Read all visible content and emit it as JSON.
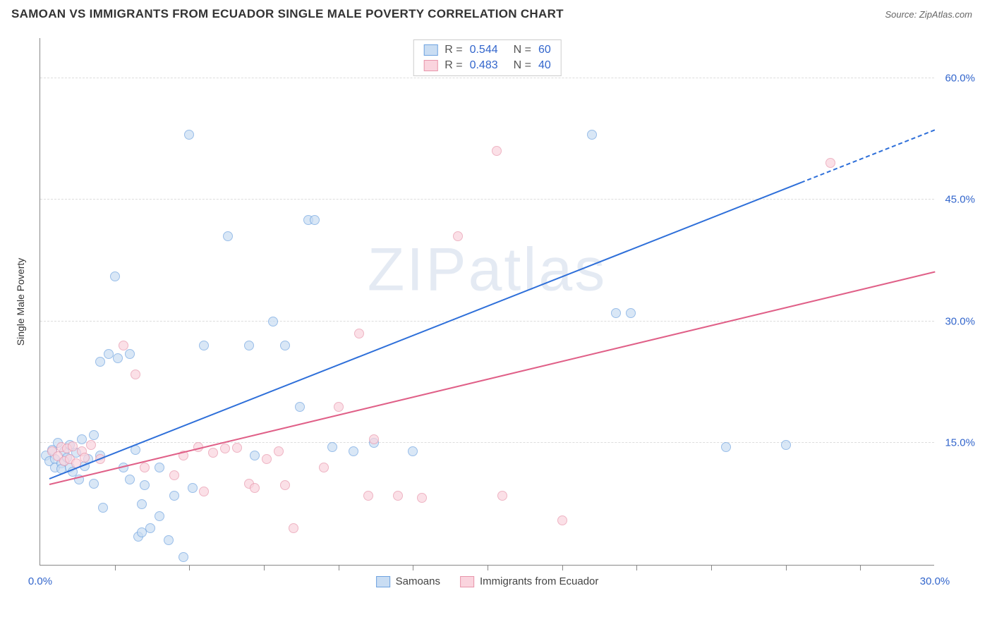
{
  "title": "SAMOAN VS IMMIGRANTS FROM ECUADOR SINGLE MALE POVERTY CORRELATION CHART",
  "source_label": "Source: ZipAtlas.com",
  "watermark": "ZIPatlas",
  "ylabel": "Single Male Poverty",
  "chart": {
    "type": "scatter",
    "xlim": [
      0,
      30
    ],
    "ylim": [
      0,
      65
    ],
    "xtick_labels": [
      "0.0%",
      "30.0%"
    ],
    "xtick_positions": [
      0,
      30
    ],
    "minor_xticks": [
      2.5,
      5,
      7.5,
      10,
      12.5,
      15,
      17.5,
      20,
      22.5,
      25,
      27.5
    ],
    "ytick_labels": [
      "15.0%",
      "30.0%",
      "45.0%",
      "60.0%"
    ],
    "ytick_positions": [
      15,
      30,
      45,
      60
    ],
    "grid_color": "#dddddd",
    "axis_color": "#888888",
    "background": "#ffffff",
    "marker_radius": 7,
    "series": [
      {
        "name": "Samoans",
        "fill": "#c9ddf3",
        "stroke": "#6fa3e0",
        "trend_color": "#2e6fd9",
        "r": "0.544",
        "n": "60",
        "trend": {
          "x1": 0.3,
          "y1": 10.5,
          "x2": 25.5,
          "y2": 47,
          "dash_to_x": 30,
          "dash_to_y": 53.5
        },
        "points": [
          [
            0.2,
            13.5
          ],
          [
            0.3,
            12.8
          ],
          [
            0.4,
            14.2
          ],
          [
            0.5,
            13.0
          ],
          [
            0.5,
            12.0
          ],
          [
            0.6,
            15.0
          ],
          [
            0.7,
            12.5
          ],
          [
            0.7,
            11.8
          ],
          [
            0.8,
            14.0
          ],
          [
            0.9,
            13.2
          ],
          [
            1.0,
            12.0
          ],
          [
            1.0,
            14.8
          ],
          [
            1.1,
            11.5
          ],
          [
            1.2,
            13.8
          ],
          [
            1.3,
            10.5
          ],
          [
            1.4,
            15.5
          ],
          [
            1.5,
            12.2
          ],
          [
            1.6,
            13.0
          ],
          [
            1.8,
            16.0
          ],
          [
            1.8,
            10.0
          ],
          [
            2.0,
            13.5
          ],
          [
            2.0,
            25.0
          ],
          [
            2.1,
            7.0
          ],
          [
            2.3,
            26.0
          ],
          [
            2.5,
            35.5
          ],
          [
            2.6,
            25.5
          ],
          [
            2.8,
            12.0
          ],
          [
            3.0,
            26.0
          ],
          [
            3.0,
            10.5
          ],
          [
            3.2,
            14.2
          ],
          [
            3.3,
            3.5
          ],
          [
            3.4,
            7.5
          ],
          [
            3.4,
            4.0
          ],
          [
            3.5,
            9.8
          ],
          [
            3.7,
            4.5
          ],
          [
            4.0,
            12.0
          ],
          [
            4.0,
            6.0
          ],
          [
            4.3,
            3.0
          ],
          [
            4.5,
            8.5
          ],
          [
            4.8,
            1.0
          ],
          [
            5.0,
            53.0
          ],
          [
            5.1,
            9.5
          ],
          [
            5.5,
            27.0
          ],
          [
            6.3,
            40.5
          ],
          [
            7.0,
            27.0
          ],
          [
            7.2,
            13.5
          ],
          [
            7.8,
            30.0
          ],
          [
            8.2,
            27.0
          ],
          [
            8.7,
            19.5
          ],
          [
            9.0,
            42.5
          ],
          [
            9.2,
            42.5
          ],
          [
            9.8,
            14.5
          ],
          [
            10.5,
            14.0
          ],
          [
            11.2,
            15.0
          ],
          [
            12.5,
            14.0
          ],
          [
            18.5,
            53.0
          ],
          [
            19.3,
            31.0
          ],
          [
            19.8,
            31.0
          ],
          [
            23.0,
            14.5
          ],
          [
            25.0,
            14.8
          ]
        ]
      },
      {
        "name": "Immigrants from Ecuador",
        "fill": "#fad4de",
        "stroke": "#e895ab",
        "trend_color": "#e06088",
        "r": "0.483",
        "n": "40",
        "trend": {
          "x1": 0.3,
          "y1": 9.8,
          "x2": 30,
          "y2": 36
        },
        "points": [
          [
            0.4,
            14.0
          ],
          [
            0.6,
            13.4
          ],
          [
            0.7,
            14.5
          ],
          [
            0.8,
            12.8
          ],
          [
            0.9,
            14.3
          ],
          [
            1.0,
            13.0
          ],
          [
            1.1,
            14.6
          ],
          [
            1.2,
            12.5
          ],
          [
            1.4,
            14.0
          ],
          [
            1.5,
            13.2
          ],
          [
            1.7,
            14.8
          ],
          [
            2.0,
            13.0
          ],
          [
            2.8,
            27.0
          ],
          [
            3.2,
            23.5
          ],
          [
            3.5,
            12.0
          ],
          [
            4.5,
            11.0
          ],
          [
            4.8,
            13.5
          ],
          [
            5.3,
            14.5
          ],
          [
            5.5,
            9.0
          ],
          [
            5.8,
            13.8
          ],
          [
            6.2,
            14.3
          ],
          [
            7.0,
            10.0
          ],
          [
            7.2,
            9.5
          ],
          [
            7.6,
            13.0
          ],
          [
            8.0,
            14.0
          ],
          [
            8.2,
            9.8
          ],
          [
            8.5,
            4.5
          ],
          [
            9.5,
            12.0
          ],
          [
            10.0,
            19.5
          ],
          [
            10.7,
            28.5
          ],
          [
            11.0,
            8.5
          ],
          [
            11.2,
            15.5
          ],
          [
            12.0,
            8.5
          ],
          [
            14.0,
            40.5
          ],
          [
            15.3,
            51.0
          ],
          [
            15.5,
            8.5
          ],
          [
            17.5,
            5.5
          ],
          [
            26.5,
            49.5
          ],
          [
            12.8,
            8.3
          ],
          [
            6.6,
            14.4
          ]
        ]
      }
    ]
  },
  "legend": {
    "items": [
      {
        "label": "Samoans",
        "fill": "#c9ddf3",
        "stroke": "#6fa3e0"
      },
      {
        "label": "Immigrants from Ecuador",
        "fill": "#fad4de",
        "stroke": "#e895ab"
      }
    ]
  }
}
